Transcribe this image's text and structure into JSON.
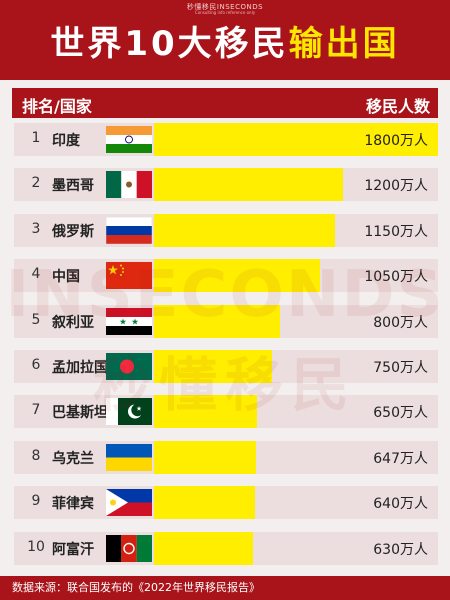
{
  "header": {
    "small_brand": "秒懂移民INSECONDS",
    "tiny_text": "Consulting info reference only",
    "title_part1": "世界10大移民",
    "title_part2": "输出国"
  },
  "table": {
    "col_left": "排名/国家",
    "col_right": "移民人数"
  },
  "watermark": {
    "line1": "INSECONDS",
    "line2": "秒懂移民"
  },
  "footer": {
    "source": "数据来源：联合国发布的《2022年世界移民报告》"
  },
  "colors": {
    "background": "#a8141a",
    "bar": "#ffee00",
    "title_accent": "#ffe600"
  },
  "chart_data": {
    "type": "bar",
    "orientation": "horizontal",
    "unit": "万人",
    "xlim": [
      0,
      1800
    ],
    "categories": [
      "印度",
      "墨西哥",
      "俄罗斯",
      "中国",
      "叙利亚",
      "孟加拉国",
      "巴基斯坦",
      "乌克兰",
      "菲律宾",
      "阿富汗"
    ],
    "ranks": [
      "1",
      "2",
      "3",
      "4",
      "5",
      "6",
      "7",
      "8",
      "9",
      "10"
    ],
    "values": [
      1800,
      1200,
      1150,
      1050,
      800,
      750,
      650,
      647,
      640,
      630
    ],
    "value_labels": [
      "1800万人",
      "1200万人",
      "1150万人",
      "1050万人",
      "800万人",
      "750万人",
      "650万人",
      "647万人",
      "640万人",
      "630万人"
    ],
    "flags": [
      "india-flag",
      "mexico-flag",
      "russia-flag",
      "china-flag",
      "syria-flag",
      "bangladesh-flag",
      "pakistan-flag",
      "ukraine-flag",
      "philippines-flag",
      "afghanistan-flag"
    ]
  }
}
